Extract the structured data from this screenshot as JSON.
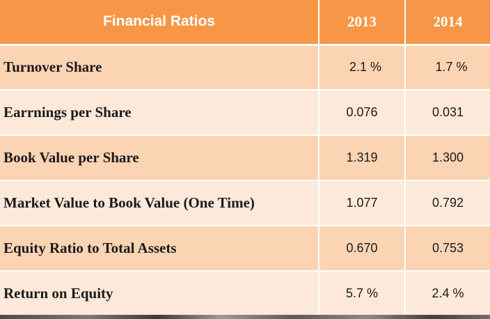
{
  "table": {
    "headers": [
      "Financial Ratios",
      "2013",
      "2014"
    ],
    "rows": [
      {
        "label": "Turnover Share",
        "v2013": "2.1 %",
        "v2014": "1.7 %"
      },
      {
        "label": "Earrnings per Share",
        "v2013": "0.076",
        "v2014": "0.031"
      },
      {
        "label": "Book Value per Share",
        "v2013": "1.319",
        "v2014": "1.300"
      },
      {
        "label": "Market Value to Book Value (One Time)",
        "v2013": "1.077",
        "v2014": "0.792"
      },
      {
        "label": "Equity Ratio to Total Assets",
        "v2013": "0.670",
        "v2014": "0.753"
      },
      {
        "label": "Return on Equity",
        "v2013": "5.7 %",
        "v2014": "2.4 %"
      }
    ]
  },
  "colors": {
    "header_bg": "#f79646",
    "row_dark": "#fbd4b4",
    "row_light": "#fde9d9",
    "header_text": "#ffffff"
  }
}
